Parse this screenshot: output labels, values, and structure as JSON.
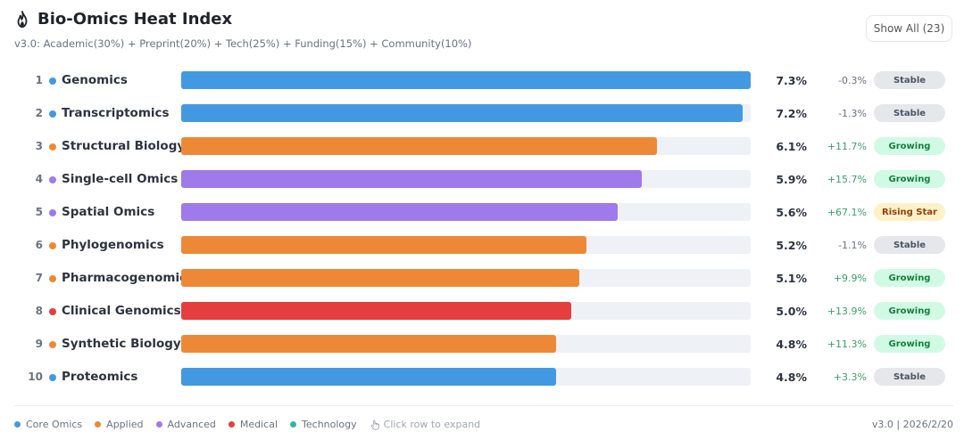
{
  "header": {
    "title": "Bio-Omics Heat Index",
    "subtitle": "v3.0: Academic(30%) + Preprint(20%) + Tech(25%) + Funding(15%) + Community(10%)",
    "show_all_label": "Show All (23)"
  },
  "categories": {
    "core": {
      "label": "Core Omics",
      "color": "#4299e1"
    },
    "applied": {
      "label": "Applied",
      "color": "#ed8936"
    },
    "advanced": {
      "label": "Advanced",
      "color": "#9f7aea"
    },
    "medical": {
      "label": "Medical",
      "color": "#e53e3e"
    },
    "technology": {
      "label": "Technology",
      "color": "#38b2ac"
    }
  },
  "status_styles": {
    "Stable": {
      "bg": "#e5e7eb",
      "fg": "#4b5563"
    },
    "Growing": {
      "bg": "#d1fae5",
      "fg": "#15803d"
    },
    "Rising Star": {
      "bg": "#fdf1c8",
      "fg": "#92400e"
    }
  },
  "rows": [
    {
      "rank": "1",
      "name": "Genomics",
      "category": "core",
      "value": 7.3,
      "pct": "7.3%",
      "change": "-0.3%",
      "status": "Stable"
    },
    {
      "rank": "2",
      "name": "Transcriptomics",
      "category": "core",
      "value": 7.2,
      "pct": "7.2%",
      "change": "-1.3%",
      "status": "Stable"
    },
    {
      "rank": "3",
      "name": "Structural Biology",
      "category": "applied",
      "value": 6.1,
      "pct": "6.1%",
      "change": "+11.7%",
      "status": "Growing"
    },
    {
      "rank": "4",
      "name": "Single-cell Omics",
      "category": "advanced",
      "value": 5.9,
      "pct": "5.9%",
      "change": "+15.7%",
      "status": "Growing"
    },
    {
      "rank": "5",
      "name": "Spatial Omics",
      "category": "advanced",
      "value": 5.6,
      "pct": "5.6%",
      "change": "+67.1%",
      "status": "Rising Star"
    },
    {
      "rank": "6",
      "name": "Phylogenomics",
      "category": "applied",
      "value": 5.2,
      "pct": "5.2%",
      "change": "-1.1%",
      "status": "Stable"
    },
    {
      "rank": "7",
      "name": "Pharmacogenomics",
      "category": "applied",
      "value": 5.1,
      "pct": "5.1%",
      "change": "+9.9%",
      "status": "Growing"
    },
    {
      "rank": "8",
      "name": "Clinical Genomics",
      "category": "medical",
      "value": 5.0,
      "pct": "5.0%",
      "change": "+13.9%",
      "status": "Growing"
    },
    {
      "rank": "9",
      "name": "Synthetic Biology",
      "category": "applied",
      "value": 4.8,
      "pct": "4.8%",
      "change": "+11.3%",
      "status": "Growing"
    },
    {
      "rank": "10",
      "name": "Proteomics",
      "category": "core",
      "value": 4.8,
      "pct": "4.8%",
      "change": "+3.3%",
      "status": "Stable"
    }
  ],
  "footer": {
    "legend": [
      {
        "label": "Core Omics",
        "color": "#4299e1"
      },
      {
        "label": "Applied",
        "color": "#ed8936"
      },
      {
        "label": "Advanced",
        "color": "#9f7aea"
      },
      {
        "label": "Medical",
        "color": "#e53e3e"
      },
      {
        "label": "Technology",
        "color": "#38b2ac"
      }
    ],
    "hint": "Click row to expand",
    "hint_icon": "pointer-hand-icon",
    "version": "v3.0 | 2026/2/20"
  },
  "colors": {
    "positive": "#38a169",
    "negative": "#6b7280"
  }
}
